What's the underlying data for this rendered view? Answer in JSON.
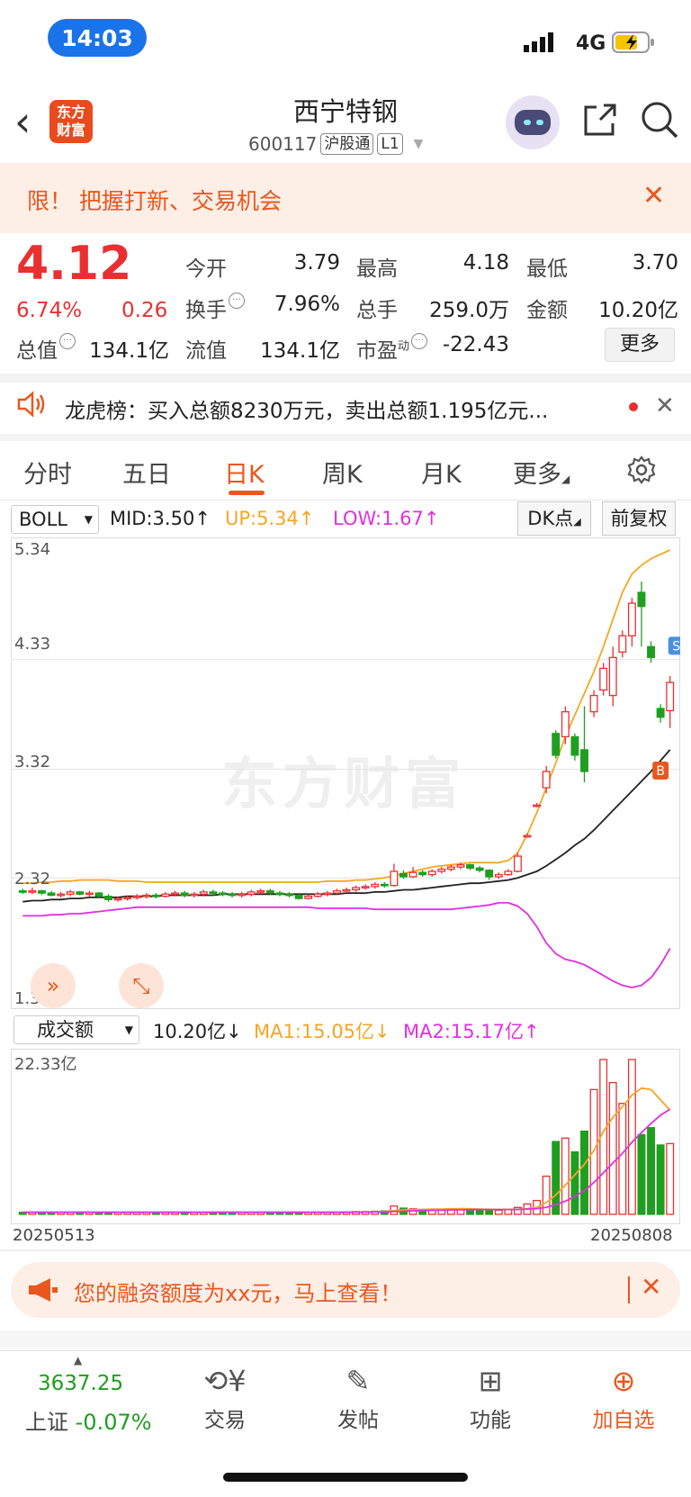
{
  "status_bar": {
    "time": "14:03",
    "network": "4G"
  },
  "header": {
    "logo_line1": "东方",
    "logo_line2": "财富",
    "stock_name": "西宁特钢",
    "code": "600117",
    "tag1": "沪股通",
    "tag2": "L1"
  },
  "promo": {
    "text": "限！ 把握打新、交易机会"
  },
  "quote": {
    "price": "4.12",
    "change_pct": "6.74%",
    "change": "0.26",
    "open_label": "今开",
    "open": "3.79",
    "high_label": "最高",
    "high": "4.18",
    "low_label": "最低",
    "low": "3.70",
    "turnover_label": "换手",
    "turnover": "7.96%",
    "volume_label": "总手",
    "volume": "259.0万",
    "amount_label": "金额",
    "amount": "10.20亿",
    "mktcap_label": "总值",
    "mktcap": "134.1亿",
    "float_label": "流值",
    "float_cap": "134.1亿",
    "pe_label": "市盈",
    "pe_sup": "动",
    "pe": "-22.43",
    "more": "更多"
  },
  "dragon": {
    "text": "龙虎榜：买入总额8230万元，卖出总额1.195亿元..."
  },
  "tabs": [
    "分时",
    "五日",
    "日K",
    "周K",
    "月K",
    "更多"
  ],
  "indicator": {
    "name": "BOLL",
    "mid": "MID:3.50",
    "up": "UP:5.34",
    "low": "LOW:1.67",
    "dk": "DK点",
    "fq": "前复权",
    "y_labels": [
      "5.34",
      "4.33",
      "3.32",
      "2.32",
      "1.31"
    ],
    "watermark": "东方财富",
    "marker_s": "S",
    "marker_b": "B"
  },
  "volume": {
    "name": "成交额",
    "value": "10.20亿",
    "ma1": "MA1:15.05亿",
    "ma2": "MA2:15.17亿",
    "max_label": "22.33亿",
    "start_date": "20250513",
    "end_date": "20250808"
  },
  "financing": {
    "text": "您的融资额度为xx元，马上查看！"
  },
  "bottom": {
    "index_value": "3637.25",
    "index_name": "上证",
    "index_change": "-0.07%",
    "trade": "交易",
    "post": "发帖",
    "functions": "功能",
    "add_fav": "加自选"
  },
  "colors": {
    "up": "#e93030",
    "down": "#1f9e1f",
    "accent": "#e9571f",
    "boll_up": "#f5a623",
    "boll_low": "#e030e0"
  },
  "chart_data": {
    "type": "candlestick",
    "price_axis": [
      1.31,
      5.34
    ],
    "candles": [
      [
        2.2,
        2.19,
        2.22,
        2.17
      ],
      [
        2.19,
        2.2,
        2.23,
        2.17
      ],
      [
        2.2,
        2.18,
        2.21,
        2.16
      ],
      [
        2.18,
        2.16,
        2.2,
        2.15
      ],
      [
        2.16,
        2.17,
        2.19,
        2.14
      ],
      [
        2.17,
        2.19,
        2.21,
        2.15
      ],
      [
        2.19,
        2.17,
        2.2,
        2.16
      ],
      [
        2.17,
        2.18,
        2.2,
        2.15
      ],
      [
        2.18,
        2.15,
        2.19,
        2.14
      ],
      [
        2.15,
        2.12,
        2.17,
        2.1
      ],
      [
        2.12,
        2.13,
        2.15,
        2.1
      ],
      [
        2.13,
        2.14,
        2.16,
        2.11
      ],
      [
        2.14,
        2.15,
        2.17,
        2.12
      ],
      [
        2.15,
        2.16,
        2.18,
        2.13
      ],
      [
        2.16,
        2.15,
        2.18,
        2.13
      ],
      [
        2.15,
        2.17,
        2.19,
        2.14
      ],
      [
        2.17,
        2.18,
        2.2,
        2.15
      ],
      [
        2.18,
        2.16,
        2.2,
        2.14
      ],
      [
        2.16,
        2.17,
        2.19,
        2.14
      ],
      [
        2.17,
        2.19,
        2.21,
        2.15
      ],
      [
        2.19,
        2.18,
        2.21,
        2.16
      ],
      [
        2.18,
        2.17,
        2.2,
        2.15
      ],
      [
        2.17,
        2.16,
        2.19,
        2.14
      ],
      [
        2.16,
        2.17,
        2.19,
        2.14
      ],
      [
        2.17,
        2.19,
        2.21,
        2.15
      ],
      [
        2.19,
        2.2,
        2.22,
        2.17
      ],
      [
        2.2,
        2.18,
        2.22,
        2.16
      ],
      [
        2.18,
        2.17,
        2.2,
        2.15
      ],
      [
        2.17,
        2.16,
        2.19,
        2.14
      ],
      [
        2.16,
        2.13,
        2.17,
        2.12
      ],
      [
        2.13,
        2.15,
        2.17,
        2.12
      ],
      [
        2.15,
        2.17,
        2.19,
        2.14
      ],
      [
        2.17,
        2.18,
        2.2,
        2.15
      ],
      [
        2.18,
        2.2,
        2.22,
        2.16
      ],
      [
        2.2,
        2.21,
        2.23,
        2.18
      ],
      [
        2.21,
        2.23,
        2.25,
        2.19
      ],
      [
        2.23,
        2.24,
        2.26,
        2.21
      ],
      [
        2.24,
        2.26,
        2.28,
        2.22
      ],
      [
        2.26,
        2.25,
        2.28,
        2.23
      ],
      [
        2.25,
        2.38,
        2.45,
        2.24
      ],
      [
        2.36,
        2.33,
        2.39,
        2.31
      ],
      [
        2.33,
        2.37,
        2.42,
        2.32
      ],
      [
        2.37,
        2.35,
        2.39,
        2.33
      ],
      [
        2.35,
        2.38,
        2.4,
        2.33
      ],
      [
        2.38,
        2.4,
        2.42,
        2.36
      ],
      [
        2.4,
        2.42,
        2.44,
        2.38
      ],
      [
        2.42,
        2.44,
        2.46,
        2.4
      ],
      [
        2.44,
        2.41,
        2.45,
        2.39
      ],
      [
        2.41,
        2.39,
        2.43,
        2.37
      ],
      [
        2.39,
        2.33,
        2.4,
        2.3
      ],
      [
        2.33,
        2.35,
        2.37,
        2.31
      ],
      [
        2.35,
        2.38,
        2.4,
        2.34
      ],
      [
        2.38,
        2.52,
        2.55,
        2.37
      ],
      [
        2.7,
        2.71,
        2.73,
        2.69
      ],
      [
        2.98,
        2.99,
        3.01,
        2.97
      ],
      [
        3.15,
        3.3,
        3.35,
        3.1
      ],
      [
        3.65,
        3.45,
        3.68,
        3.42
      ],
      [
        3.62,
        3.85,
        3.9,
        3.55
      ],
      [
        3.62,
        3.45,
        3.65,
        3.4
      ],
      [
        3.5,
        3.3,
        3.9,
        3.2
      ],
      [
        3.85,
        4.0,
        4.05,
        3.8
      ],
      [
        4.05,
        4.25,
        4.3,
        4.0
      ],
      [
        4.0,
        4.35,
        4.45,
        3.9
      ],
      [
        4.4,
        4.55,
        4.6,
        4.35
      ],
      [
        4.55,
        4.85,
        4.9,
        4.45
      ],
      [
        4.95,
        4.82,
        5.05,
        4.45
      ],
      [
        4.45,
        4.35,
        4.5,
        4.3
      ],
      [
        3.88,
        3.8,
        3.92,
        3.75
      ],
      [
        3.86,
        4.12,
        4.18,
        3.7
      ]
    ],
    "mid_line": [
      2.1,
      2.11,
      2.11,
      2.12,
      2.12,
      2.13,
      2.13,
      2.14,
      2.14,
      2.14,
      2.14,
      2.15,
      2.15,
      2.15,
      2.15,
      2.16,
      2.16,
      2.16,
      2.16,
      2.16,
      2.16,
      2.17,
      2.17,
      2.17,
      2.17,
      2.17,
      2.17,
      2.17,
      2.17,
      2.17,
      2.17,
      2.17,
      2.17,
      2.17,
      2.18,
      2.18,
      2.18,
      2.19,
      2.19,
      2.2,
      2.21,
      2.21,
      2.22,
      2.23,
      2.24,
      2.25,
      2.26,
      2.27,
      2.27,
      2.28,
      2.29,
      2.3,
      2.32,
      2.35,
      2.38,
      2.43,
      2.49,
      2.55,
      2.62,
      2.68,
      2.76,
      2.85,
      2.94,
      3.03,
      3.12,
      3.21,
      3.3,
      3.4,
      3.5
    ],
    "up_line": [
      2.27,
      2.27,
      2.28,
      2.28,
      2.29,
      2.29,
      2.3,
      2.3,
      2.3,
      2.3,
      2.29,
      2.29,
      2.29,
      2.28,
      2.28,
      2.28,
      2.28,
      2.28,
      2.28,
      2.28,
      2.28,
      2.28,
      2.28,
      2.28,
      2.28,
      2.28,
      2.28,
      2.28,
      2.28,
      2.28,
      2.28,
      2.28,
      2.29,
      2.29,
      2.29,
      2.3,
      2.3,
      2.31,
      2.32,
      2.34,
      2.36,
      2.38,
      2.4,
      2.42,
      2.43,
      2.44,
      2.45,
      2.46,
      2.46,
      2.46,
      2.46,
      2.48,
      2.55,
      2.72,
      2.92,
      3.15,
      3.38,
      3.62,
      3.82,
      4.02,
      4.22,
      4.45,
      4.7,
      4.95,
      5.12,
      5.2,
      5.26,
      5.3,
      5.34
    ],
    "low_line": [
      1.97,
      1.97,
      1.97,
      1.98,
      1.98,
      1.99,
      1.99,
      2.0,
      2.01,
      2.02,
      2.03,
      2.04,
      2.05,
      2.05,
      2.05,
      2.05,
      2.05,
      2.05,
      2.05,
      2.05,
      2.05,
      2.05,
      2.05,
      2.05,
      2.05,
      2.05,
      2.05,
      2.05,
      2.05,
      2.05,
      2.05,
      2.04,
      2.04,
      2.04,
      2.04,
      2.04,
      2.04,
      2.03,
      2.03,
      2.03,
      2.03,
      2.03,
      2.03,
      2.03,
      2.03,
      2.03,
      2.04,
      2.05,
      2.06,
      2.07,
      2.09,
      2.09,
      2.06,
      1.99,
      1.87,
      1.72,
      1.62,
      1.57,
      1.55,
      1.52,
      1.47,
      1.42,
      1.37,
      1.33,
      1.31,
      1.33,
      1.4,
      1.52,
      1.67
    ],
    "volume_axis_max": 22.33,
    "volume": [
      0.3,
      0.3,
      0.3,
      0.3,
      0.3,
      0.3,
      0.3,
      0.3,
      0.3,
      0.3,
      0.3,
      0.3,
      0.3,
      0.3,
      0.3,
      0.3,
      0.3,
      0.3,
      0.3,
      0.3,
      0.3,
      0.3,
      0.3,
      0.3,
      0.3,
      0.3,
      0.3,
      0.3,
      0.3,
      0.3,
      0.3,
      0.3,
      0.3,
      0.3,
      0.35,
      0.4,
      0.4,
      0.45,
      0.5,
      1.2,
      0.9,
      0.8,
      0.7,
      0.65,
      0.7,
      0.75,
      0.8,
      0.75,
      0.7,
      0.65,
      0.6,
      0.7,
      1.0,
      1.5,
      2.0,
      5.5,
      10.5,
      11.0,
      9.0,
      12.0,
      18.0,
      22.33,
      19.0,
      16.0,
      22.33,
      11.5,
      12.5,
      10.0,
      10.2
    ],
    "vol_ma1": [
      0.3,
      0.3,
      0.3,
      0.3,
      0.3,
      0.3,
      0.3,
      0.3,
      0.3,
      0.3,
      0.3,
      0.3,
      0.3,
      0.3,
      0.3,
      0.3,
      0.3,
      0.3,
      0.3,
      0.3,
      0.3,
      0.3,
      0.3,
      0.3,
      0.3,
      0.3,
      0.3,
      0.3,
      0.3,
      0.3,
      0.3,
      0.3,
      0.3,
      0.3,
      0.31,
      0.33,
      0.35,
      0.38,
      0.41,
      0.55,
      0.62,
      0.68,
      0.72,
      0.75,
      0.77,
      0.8,
      0.82,
      0.8,
      0.77,
      0.73,
      0.7,
      0.71,
      0.74,
      0.82,
      1.0,
      1.7,
      2.8,
      4.2,
      5.7,
      7.2,
      9.2,
      12.0,
      14.0,
      15.5,
      17.2,
      18.2,
      18.0,
      16.5,
      15.05
    ],
    "vol_ma2": [
      0.3,
      0.3,
      0.3,
      0.3,
      0.3,
      0.3,
      0.3,
      0.3,
      0.3,
      0.3,
      0.3,
      0.3,
      0.3,
      0.3,
      0.3,
      0.3,
      0.3,
      0.3,
      0.3,
      0.3,
      0.3,
      0.3,
      0.3,
      0.3,
      0.3,
      0.3,
      0.3,
      0.3,
      0.3,
      0.3,
      0.3,
      0.3,
      0.3,
      0.3,
      0.3,
      0.31,
      0.32,
      0.33,
      0.35,
      0.4,
      0.45,
      0.5,
      0.54,
      0.57,
      0.6,
      0.63,
      0.66,
      0.68,
      0.7,
      0.7,
      0.7,
      0.7,
      0.72,
      0.76,
      0.82,
      1.0,
      1.4,
      1.9,
      2.6,
      3.4,
      4.6,
      6.0,
      7.4,
      8.8,
      10.4,
      11.8,
      13.1,
      14.3,
      15.17
    ]
  }
}
